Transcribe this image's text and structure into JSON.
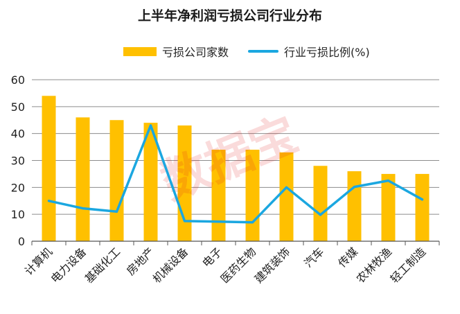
{
  "chart_data": {
    "type": "bar",
    "title": "上半年净利润亏损公司行业分布",
    "xlabel": "",
    "ylabel": "",
    "ylim": [
      0,
      60
    ],
    "yticks": [
      0,
      10,
      20,
      30,
      40,
      50,
      60
    ],
    "grid": true,
    "legend_position": "top",
    "categories": [
      "计算机",
      "电力设备",
      "基础化工",
      "房地产",
      "机械设备",
      "电子",
      "医药生物",
      "建筑装饰",
      "汽车",
      "传媒",
      "农林牧渔",
      "轻工制造"
    ],
    "series": [
      {
        "name": "亏损公司家数",
        "type": "bar",
        "color": "#FFC000",
        "values": [
          54,
          46,
          45,
          44,
          43,
          34,
          34,
          33,
          28,
          26,
          25,
          25
        ]
      },
      {
        "name": "行业亏损比例(%)",
        "type": "line",
        "color": "#1BA7E0",
        "values": [
          15,
          12.2,
          11,
          43,
          7.5,
          7.3,
          7,
          20,
          9.8,
          20.2,
          22.5,
          15.5
        ]
      }
    ]
  },
  "watermark": "数据宝"
}
